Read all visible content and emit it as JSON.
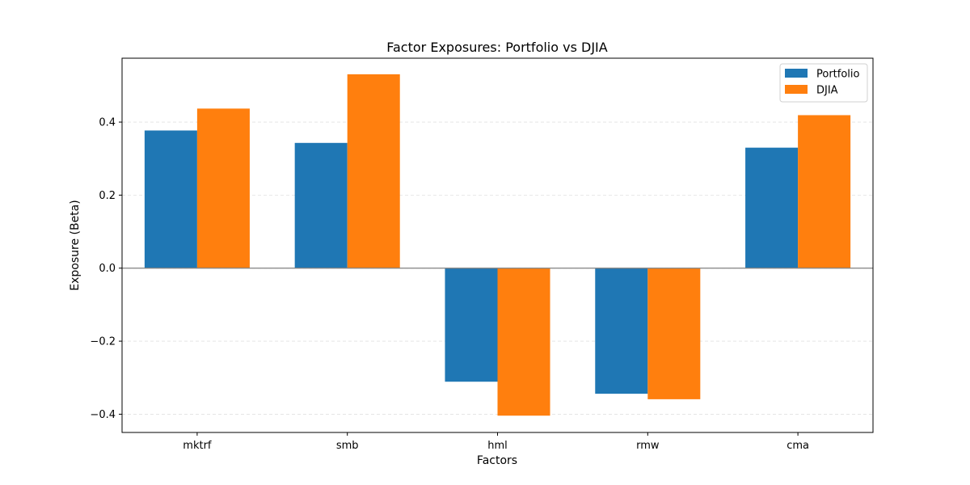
{
  "chart_data": {
    "type": "bar",
    "title": "Factor Exposures: Portfolio vs DJIA",
    "xlabel": "Factors",
    "ylabel": "Exposure (Beta)",
    "categories": [
      "mktrf",
      "smb",
      "hml",
      "rmw",
      "cma"
    ],
    "series": [
      {
        "name": "Portfolio",
        "color": "#1f77b4",
        "values": [
          0.377,
          0.343,
          -0.311,
          -0.344,
          0.33
        ]
      },
      {
        "name": "DJIA",
        "color": "#ff7f0e",
        "values": [
          0.437,
          0.531,
          -0.404,
          -0.359,
          0.419
        ]
      }
    ],
    "ylim": [
      -0.45,
      0.575
    ],
    "yticks": [
      -0.4,
      -0.2,
      0.0,
      0.2,
      0.4
    ],
    "ytick_labels": [
      "−0.4",
      "−0.2",
      "0.0",
      "0.2",
      "0.4"
    ],
    "grid": "horizontal-dashed",
    "zero_line": true,
    "legend": "top-right"
  }
}
